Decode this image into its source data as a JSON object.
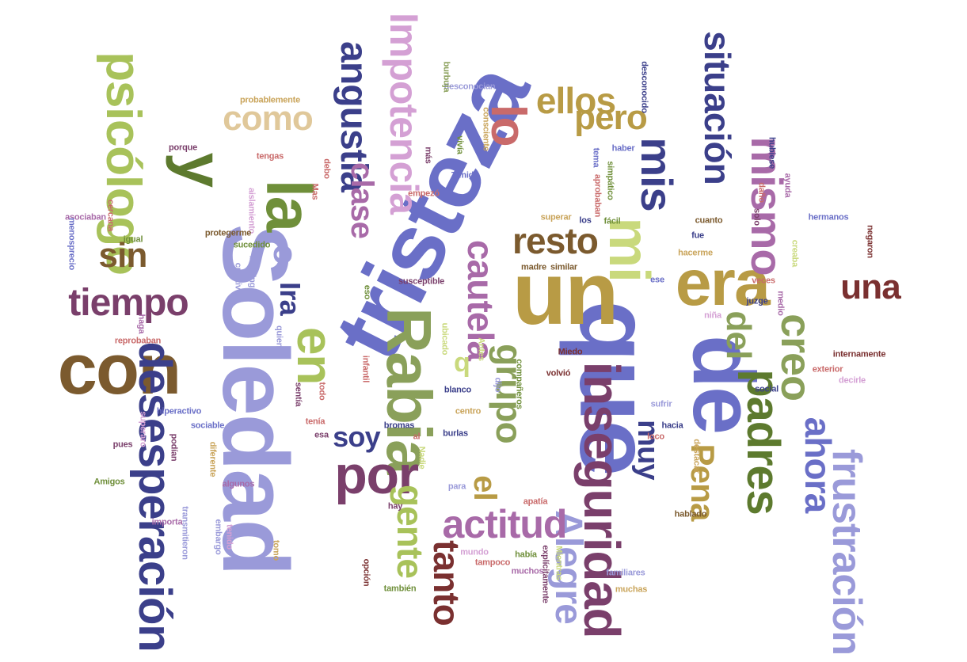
{
  "words": [
    {
      "text": "tristeza",
      "color": "#6a6fc7",
      "orientation": "tilted"
    },
    {
      "text": "que",
      "color": "#6a6fc7",
      "orientation": "vertical"
    },
    {
      "text": "Soledad",
      "color": "#9a9ad9",
      "orientation": "vertical"
    },
    {
      "text": "un",
      "color": "#b89b45",
      "orientation": "horizontal"
    },
    {
      "text": "de",
      "color": "#6a6fc7",
      "orientation": "vertical"
    },
    {
      "text": "con",
      "color": "#7b5a2e",
      "orientation": "horizontal"
    },
    {
      "text": "era",
      "color": "#b89b45",
      "orientation": "horizontal"
    },
    {
      "text": "Rabia",
      "color": "#8aa05a",
      "orientation": "vertical"
    },
    {
      "text": "la",
      "color": "#6f8f3a",
      "orientation": "vertical"
    },
    {
      "text": "y",
      "color": "#5d7a2e",
      "orientation": "vertical"
    },
    {
      "text": "mi",
      "color": "#c9d97c",
      "orientation": "vertical"
    },
    {
      "text": "en",
      "color": "#a8c25a",
      "orientation": "vertical"
    },
    {
      "text": "psicólogo",
      "color": "#a8c25a",
      "orientation": "vertical"
    },
    {
      "text": "inseguridad",
      "color": "#7a3f6b",
      "orientation": "vertical"
    },
    {
      "text": "desesperación",
      "color": "#3b3f8a",
      "orientation": "vertical"
    },
    {
      "text": "Impotencia",
      "color": "#d4a0d4",
      "orientation": "vertical"
    },
    {
      "text": "angustia",
      "color": "#3b3f8a",
      "orientation": "vertical"
    },
    {
      "text": "mis",
      "color": "#3b3f8a",
      "orientation": "vertical"
    },
    {
      "text": "lo",
      "color": "#c96a6a",
      "orientation": "vertical"
    },
    {
      "text": "situación",
      "color": "#3b3f8a",
      "orientation": "vertical"
    },
    {
      "text": "mismo",
      "color": "#a86aa8",
      "orientation": "vertical"
    },
    {
      "text": "por",
      "color": "#7a3f6b",
      "orientation": "horizontal"
    },
    {
      "text": "padres",
      "color": "#5d7a2e",
      "orientation": "vertical"
    },
    {
      "text": "frustración",
      "color": "#9a9ad9",
      "orientation": "vertical"
    },
    {
      "text": "Alegre",
      "color": "#9a9ad9",
      "orientation": "vertical"
    },
    {
      "text": "actitud",
      "color": "#a86aa8",
      "orientation": "horizontal"
    },
    {
      "text": "tiempo",
      "color": "#7a3f6b",
      "orientation": "horizontal"
    },
    {
      "text": "creo",
      "color": "#8aa05a",
      "orientation": "vertical"
    },
    {
      "text": "ahora",
      "color": "#6a6fc7",
      "orientation": "vertical"
    },
    {
      "text": "tanto",
      "color": "#7a3030",
      "orientation": "vertical"
    },
    {
      "text": "gente",
      "color": "#a8c25a",
      "orientation": "vertical"
    },
    {
      "text": "grupo",
      "color": "#8aa05a",
      "orientation": "vertical"
    },
    {
      "text": "cautela",
      "color": "#a86aa8",
      "orientation": "vertical"
    },
    {
      "text": "clase",
      "color": "#a86aa8",
      "orientation": "vertical"
    },
    {
      "text": "resto",
      "color": "#7b5a2e",
      "orientation": "horizontal"
    },
    {
      "text": "ellos",
      "color": "#b89b45",
      "orientation": "horizontal"
    },
    {
      "text": "pero",
      "color": "#b89b45",
      "orientation": "horizontal"
    },
    {
      "text": "como",
      "color": "#e0c89a",
      "orientation": "horizontal"
    },
    {
      "text": "sin",
      "color": "#7b5a2e",
      "orientation": "horizontal"
    },
    {
      "text": "Ira",
      "color": "#3b3f8a",
      "orientation": "vertical"
    },
    {
      "text": "soy",
      "color": "#3b3f8a",
      "orientation": "horizontal"
    },
    {
      "text": "del",
      "color": "#8aa05a",
      "orientation": "vertical"
    },
    {
      "text": "una",
      "color": "#7a3030",
      "orientation": "horizontal"
    },
    {
      "text": "Pena",
      "color": "#b89b45",
      "orientation": "vertical"
    },
    {
      "text": "muy",
      "color": "#3b3f8a",
      "orientation": "vertical"
    },
    {
      "text": "el",
      "color": "#b89b45",
      "orientation": "vertical"
    },
    {
      "text": "o",
      "color": "#9a9ad9",
      "orientation": "vertical"
    },
    {
      "text": "q",
      "color": "#c9d97c",
      "orientation": "horizontal"
    },
    {
      "text": "probablemente",
      "color": "#c9a45a",
      "orientation": "horizontal"
    },
    {
      "text": "desconocian",
      "color": "#9a9ad9",
      "orientation": "horizontal"
    },
    {
      "text": "consciente",
      "color": "#c9a45a",
      "orientation": "vertical"
    },
    {
      "text": "burbuja",
      "color": "#8aa05a",
      "orientation": "vertical"
    },
    {
      "text": "desconocido",
      "color": "#3b3f8a",
      "orientation": "vertical"
    },
    {
      "text": "hubiese",
      "color": "#3b3f8a",
      "orientation": "vertical"
    },
    {
      "text": "porque",
      "color": "#7a3f6b",
      "orientation": "horizontal"
    },
    {
      "text": "tengas",
      "color": "#c96a6a",
      "orientation": "horizontal"
    },
    {
      "text": "más",
      "color": "#7a3f6b",
      "orientation": "vertical"
    },
    {
      "text": "vivía",
      "color": "#6f8f3a",
      "orientation": "vertical"
    },
    {
      "text": "Tímida",
      "color": "#6a6fc7",
      "orientation": "horizontal"
    },
    {
      "text": "empezó",
      "color": "#c96a6a",
      "orientation": "horizontal"
    },
    {
      "text": "tema",
      "color": "#6a6fc7",
      "orientation": "vertical"
    },
    {
      "text": "haber",
      "color": "#6a6fc7",
      "orientation": "horizontal"
    },
    {
      "text": "daño",
      "color": "#c96a6a",
      "orientation": "vertical"
    },
    {
      "text": "ayuda",
      "color": "#a86aa8",
      "orientation": "vertical"
    },
    {
      "text": "simpático",
      "color": "#6f8f3a",
      "orientation": "vertical"
    },
    {
      "text": "aprobaban",
      "color": "#c96a6a",
      "orientation": "vertical"
    },
    {
      "text": "solo",
      "color": "#7a3f6b",
      "orientation": "vertical"
    },
    {
      "text": "asociaban",
      "color": "#a86aa8",
      "orientation": "horizontal"
    },
    {
      "text": "cercana",
      "color": "#c96a6a",
      "orientation": "vertical"
    },
    {
      "text": "aislamiento",
      "color": "#d4a0d4",
      "orientation": "vertical"
    },
    {
      "text": "Mas",
      "color": "#c96a6a",
      "orientation": "vertical"
    },
    {
      "text": "debo",
      "color": "#c96a6a",
      "orientation": "vertical"
    },
    {
      "text": "protegerme",
      "color": "#7b5a2e",
      "orientation": "horizontal"
    },
    {
      "text": "superar",
      "color": "#c9a45a",
      "orientation": "horizontal"
    },
    {
      "text": "los",
      "color": "#3b3f8a",
      "orientation": "horizontal"
    },
    {
      "text": "fácil",
      "color": "#6f8f3a",
      "orientation": "horizontal"
    },
    {
      "text": "cuanto",
      "color": "#7b5a2e",
      "orientation": "horizontal"
    },
    {
      "text": "hermanos",
      "color": "#6a6fc7",
      "orientation": "horizontal"
    },
    {
      "text": "menosprecio",
      "color": "#6a6fc7",
      "orientation": "vertical"
    },
    {
      "text": "igual",
      "color": "#6f8f3a",
      "orientation": "horizontal"
    },
    {
      "text": "sucedido",
      "color": "#6f8f3a",
      "orientation": "horizontal"
    },
    {
      "text": "fue",
      "color": "#3b3f8a",
      "orientation": "horizontal"
    },
    {
      "text": "hacerme",
      "color": "#c9a45a",
      "orientation": "horizontal"
    },
    {
      "text": "negaron",
      "color": "#7a3030",
      "orientation": "vertical"
    },
    {
      "text": "creaba",
      "color": "#c9d97c",
      "orientation": "vertical"
    },
    {
      "text": "bullying",
      "color": "#9a9ad9",
      "orientation": "vertical"
    },
    {
      "text": "creativo",
      "color": "#9a9ad9",
      "orientation": "vertical"
    },
    {
      "text": "madre",
      "color": "#7b5a2e",
      "orientation": "horizontal"
    },
    {
      "text": "similar",
      "color": "#7b5a2e",
      "orientation": "horizontal"
    },
    {
      "text": "eso",
      "color": "#6f8f3a",
      "orientation": "vertical"
    },
    {
      "text": "susceptible",
      "color": "#7a3f6b",
      "orientation": "horizontal"
    },
    {
      "text": "ese",
      "color": "#6a6fc7",
      "orientation": "horizontal"
    },
    {
      "text": "veces",
      "color": "#c96a6a",
      "orientation": "horizontal"
    },
    {
      "text": "medio",
      "color": "#a86aa8",
      "orientation": "vertical"
    },
    {
      "text": "juzge",
      "color": "#3b3f8a",
      "orientation": "horizontal"
    },
    {
      "text": "niña",
      "color": "#d4a0d4",
      "orientation": "horizontal"
    },
    {
      "text": "haga",
      "color": "#a86aa8",
      "orientation": "vertical"
    },
    {
      "text": "quienes",
      "color": "#9a9ad9",
      "orientation": "vertical"
    },
    {
      "text": "ubicado",
      "color": "#c9d97c",
      "orientation": "vertical"
    },
    {
      "text": "Antes",
      "color": "#c9d97c",
      "orientation": "vertical"
    },
    {
      "text": "reprobaban",
      "color": "#c96a6a",
      "orientation": "horizontal"
    },
    {
      "text": "Miedo",
      "color": "#7a3030",
      "orientation": "horizontal"
    },
    {
      "text": "internamente",
      "color": "#7a3030",
      "orientation": "horizontal"
    },
    {
      "text": "volvió",
      "color": "#7a3030",
      "orientation": "horizontal"
    },
    {
      "text": "compañeros",
      "color": "#6f8f3a",
      "orientation": "vertical"
    },
    {
      "text": "infantil",
      "color": "#c96a6a",
      "orientation": "vertical"
    },
    {
      "text": "exterior",
      "color": "#c96a6a",
      "orientation": "horizontal"
    },
    {
      "text": "decirle",
      "color": "#d4a0d4",
      "orientation": "horizontal"
    },
    {
      "text": "todo",
      "color": "#c96a6a",
      "orientation": "vertical"
    },
    {
      "text": "sentía",
      "color": "#7a3f6b",
      "orientation": "vertical"
    },
    {
      "text": "blanco",
      "color": "#3b3f8a",
      "orientation": "horizontal"
    },
    {
      "text": "dijo",
      "color": "#9a9ad9",
      "orientation": "vertical"
    },
    {
      "text": "social",
      "color": "#3b3f8a",
      "orientation": "horizontal"
    },
    {
      "text": "hiperactivo",
      "color": "#6a6fc7",
      "orientation": "horizontal"
    },
    {
      "text": "centro",
      "color": "#c9a45a",
      "orientation": "horizontal"
    },
    {
      "text": "sufrir",
      "color": "#9a9ad9",
      "orientation": "horizontal"
    },
    {
      "text": "superaro",
      "color": "#d4a0d4",
      "orientation": "vertical"
    },
    {
      "text": "sociable",
      "color": "#6a6fc7",
      "orientation": "horizontal"
    },
    {
      "text": "tenía",
      "color": "#c96a6a",
      "orientation": "horizontal"
    },
    {
      "text": "bromas",
      "color": "#3b3f8a",
      "orientation": "horizontal"
    },
    {
      "text": "burlas",
      "color": "#3b3f8a",
      "orientation": "horizontal"
    },
    {
      "text": "pues",
      "color": "#7a3f6b",
      "orientation": "horizontal"
    },
    {
      "text": "esa",
      "color": "#7a3f6b",
      "orientation": "horizontal"
    },
    {
      "text": "al",
      "color": "#c96a6a",
      "orientation": "horizontal"
    },
    {
      "text": "hacia",
      "color": "#3b3f8a",
      "orientation": "horizontal"
    },
    {
      "text": "loco",
      "color": "#c96a6a",
      "orientation": "horizontal"
    },
    {
      "text": "diferente",
      "color": "#c9a45a",
      "orientation": "vertical"
    },
    {
      "text": "podían",
      "color": "#7a3f6b",
      "orientation": "vertical"
    },
    {
      "text": "Nadie",
      "color": "#c9d97c",
      "orientation": "vertical"
    },
    {
      "text": "destacar",
      "color": "#c9a45a",
      "orientation": "vertical"
    },
    {
      "text": "Amigos",
      "color": "#6f8f3a",
      "orientation": "horizontal"
    },
    {
      "text": "algunos",
      "color": "#a86aa8",
      "orientation": "horizontal"
    },
    {
      "text": "para",
      "color": "#9a9ad9",
      "orientation": "horizontal"
    },
    {
      "text": "apatía",
      "color": "#c96a6a",
      "orientation": "horizontal"
    },
    {
      "text": "hay",
      "color": "#7a3f6b",
      "orientation": "horizontal"
    },
    {
      "text": "hablado",
      "color": "#7b5a2e",
      "orientation": "horizontal"
    },
    {
      "text": "importa",
      "color": "#a86aa8",
      "orientation": "horizontal"
    },
    {
      "text": "transmitieron",
      "color": "#9a9ad9",
      "orientation": "vertical"
    },
    {
      "text": "embargo",
      "color": "#9a9ad9",
      "orientation": "vertical"
    },
    {
      "text": "tenido",
      "color": "#d4a0d4",
      "orientation": "vertical"
    },
    {
      "text": "mundo",
      "color": "#d4a0d4",
      "orientation": "horizontal"
    },
    {
      "text": "tampoco",
      "color": "#c96a6a",
      "orientation": "horizontal"
    },
    {
      "text": "había",
      "color": "#6f8f3a",
      "orientation": "horizontal"
    },
    {
      "text": "Mientras",
      "color": "#c9d97c",
      "orientation": "vertical"
    },
    {
      "text": "tomo",
      "color": "#c9a45a",
      "orientation": "vertical"
    },
    {
      "text": "opción",
      "color": "#7a3030",
      "orientation": "vertical"
    },
    {
      "text": "muchos",
      "color": "#a86aa8",
      "orientation": "horizontal"
    },
    {
      "text": "explícitamente",
      "color": "#7a3f6b",
      "orientation": "vertical"
    },
    {
      "text": "familiares",
      "color": "#9a9ad9",
      "orientation": "horizontal"
    },
    {
      "text": "muchas",
      "color": "#c9a45a",
      "orientation": "horizontal"
    },
    {
      "text": "también",
      "color": "#6f8f3a",
      "orientation": "horizontal"
    }
  ]
}
